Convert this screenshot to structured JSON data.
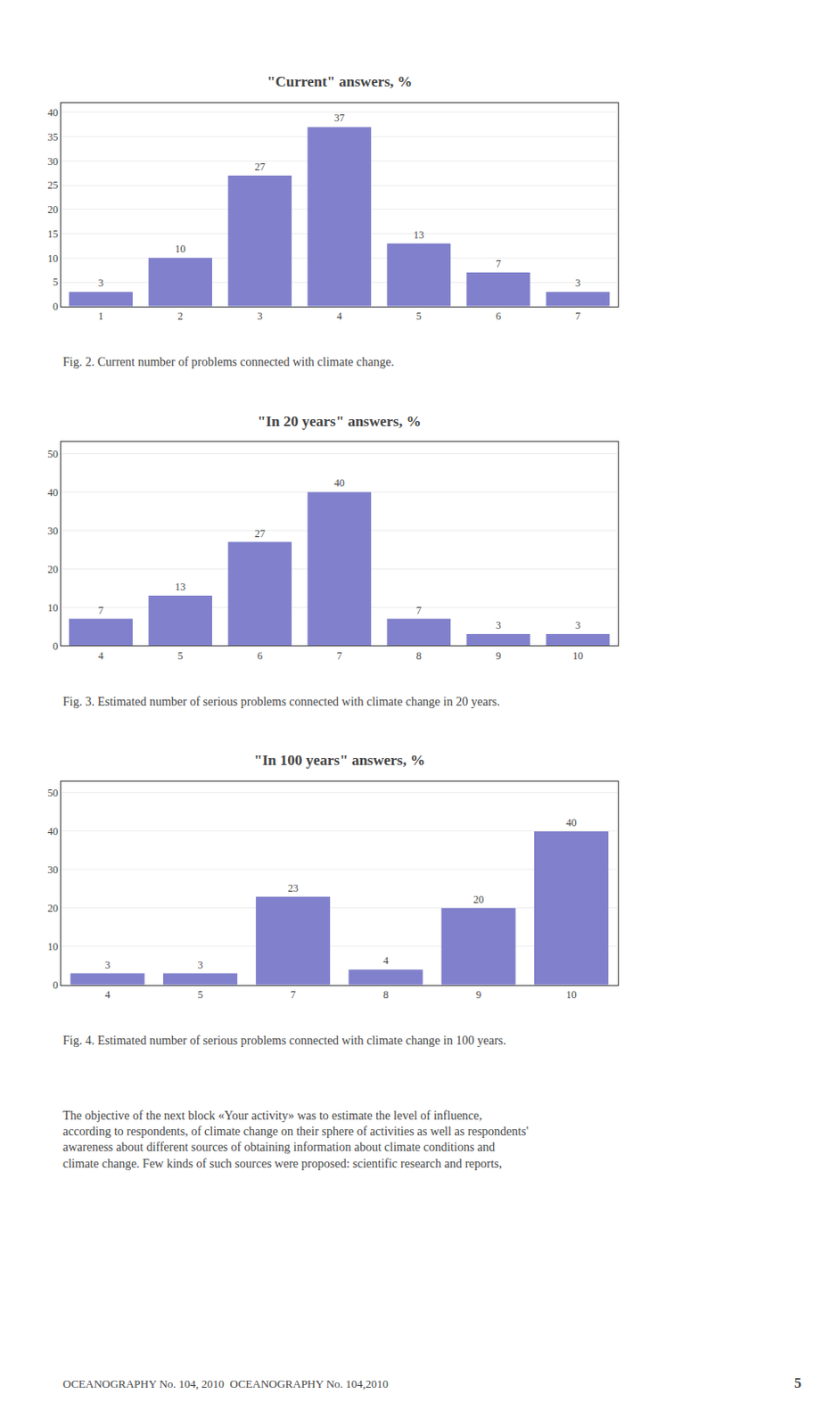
{
  "chart_data": [
    {
      "type": "bar",
      "title": "\"Current\" answers, %",
      "categories": [
        1,
        2,
        3,
        4,
        5,
        6,
        7
      ],
      "values": [
        3,
        10,
        27,
        37,
        13,
        7,
        3
      ],
      "color": "#8080cc",
      "ylim": [
        0,
        42
      ],
      "yticks": [
        0,
        5,
        10,
        15,
        20,
        25,
        30,
        35,
        40
      ],
      "grid": true,
      "data_labels": true,
      "caption": "Fig. 2. Current number of problems connected with climate change."
    },
    {
      "type": "bar",
      "title": "\"In 20 years\" answers, %",
      "categories": [
        4,
        5,
        6,
        7,
        8,
        9,
        10
      ],
      "values": [
        7,
        13,
        27,
        40,
        7,
        3,
        3
      ],
      "color": "#8080cc",
      "ylim": [
        0,
        53
      ],
      "yticks": [
        0,
        10,
        20,
        30,
        40,
        50
      ],
      "grid": true,
      "data_labels": true,
      "caption": "Fig. 3. Estimated number of serious problems connected with climate change in 20 years."
    },
    {
      "type": "bar",
      "title": "\"In 100 years\" answers, %",
      "categories": [
        4,
        5,
        7,
        8,
        9,
        10
      ],
      "values": [
        3,
        3,
        23,
        4,
        20,
        40
      ],
      "color": "#8080cc",
      "ylim": [
        0,
        53
      ],
      "yticks": [
        0,
        10,
        20,
        30,
        40,
        50
      ],
      "grid": true,
      "data_labels": true,
      "caption": "Fig. 4. Estimated number of serious problems connected with climate change in 100 years."
    }
  ],
  "body_text": "The objective of the next block «Your activity» was to estimate the level of influence,\naccording to respondents, of climate change on their sphere of activities as well as respondents'\nawareness about different sources of obtaining information about climate conditions and\nclimate change. Few kinds of such sources were proposed: scientific research and reports,",
  "footer_text": "OCEANOGRAPHY No. 104, 2010  OCEANOGRAPHY No. 104,2010",
  "footer_page": "5"
}
